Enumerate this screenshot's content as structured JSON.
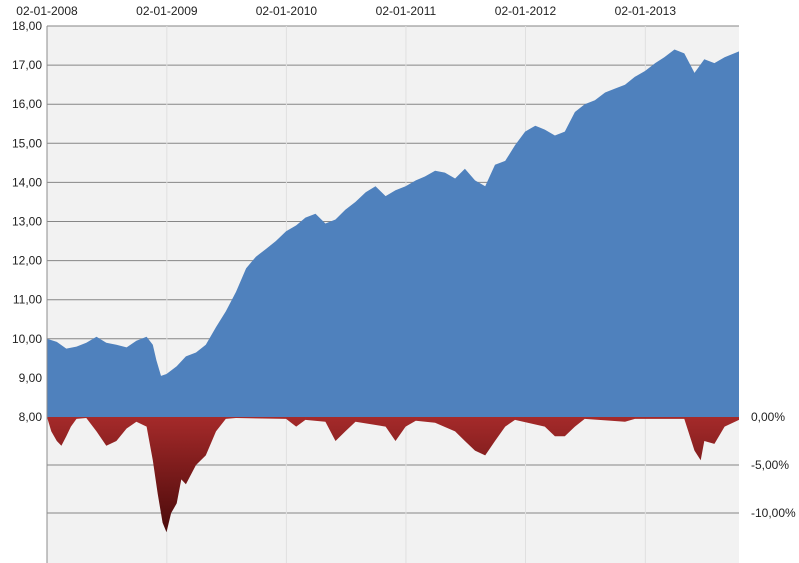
{
  "chart_data": {
    "type": "area",
    "title": "",
    "xlabel": "",
    "ylabel": "",
    "x_tick_labels": [
      "02-01-2008",
      "02-01-2009",
      "02-01-2010",
      "02-01-2011",
      "02-01-2012",
      "02-01-2013"
    ],
    "x_range": [
      "2008-01-02",
      "2013-10-15"
    ],
    "grid": true,
    "legend": "none",
    "series": [
      {
        "axis": "left",
        "color": "#4f81bd",
        "y_range": [
          8,
          18
        ],
        "y_tick_labels": [
          "8,00",
          "9,00",
          "10,00",
          "11,00",
          "12,00",
          "13,00",
          "14,00",
          "15,00",
          "16,00",
          "17,00",
          "18,00"
        ],
        "points": [
          [
            "2008-01-02",
            10.0
          ],
          [
            "2008-02-01",
            9.92
          ],
          [
            "2008-03-01",
            9.75
          ],
          [
            "2008-04-01",
            9.8
          ],
          [
            "2008-05-01",
            9.9
          ],
          [
            "2008-06-01",
            10.05
          ],
          [
            "2008-07-01",
            9.9
          ],
          [
            "2008-08-01",
            9.85
          ],
          [
            "2008-09-01",
            9.78
          ],
          [
            "2008-10-01",
            9.95
          ],
          [
            "2008-11-01",
            10.05
          ],
          [
            "2008-11-20",
            9.85
          ],
          [
            "2008-12-01",
            9.45
          ],
          [
            "2008-12-15",
            9.05
          ],
          [
            "2009-01-01",
            9.1
          ],
          [
            "2009-02-01",
            9.3
          ],
          [
            "2009-03-01",
            9.55
          ],
          [
            "2009-04-01",
            9.65
          ],
          [
            "2009-05-01",
            9.85
          ],
          [
            "2009-06-01",
            10.3
          ],
          [
            "2009-07-01",
            10.7
          ],
          [
            "2009-08-01",
            11.2
          ],
          [
            "2009-09-01",
            11.8
          ],
          [
            "2009-10-01",
            12.1
          ],
          [
            "2009-11-01",
            12.3
          ],
          [
            "2009-12-01",
            12.5
          ],
          [
            "2010-01-01",
            12.75
          ],
          [
            "2010-02-01",
            12.9
          ],
          [
            "2010-03-01",
            13.1
          ],
          [
            "2010-04-01",
            13.2
          ],
          [
            "2010-05-01",
            12.95
          ],
          [
            "2010-06-01",
            13.05
          ],
          [
            "2010-07-01",
            13.3
          ],
          [
            "2010-08-01",
            13.5
          ],
          [
            "2010-09-01",
            13.75
          ],
          [
            "2010-10-01",
            13.9
          ],
          [
            "2010-11-01",
            13.65
          ],
          [
            "2010-12-01",
            13.8
          ],
          [
            "2011-01-01",
            13.9
          ],
          [
            "2011-02-01",
            14.05
          ],
          [
            "2011-03-01",
            14.15
          ],
          [
            "2011-04-01",
            14.3
          ],
          [
            "2011-05-01",
            14.25
          ],
          [
            "2011-06-01",
            14.1
          ],
          [
            "2011-07-01",
            14.35
          ],
          [
            "2011-08-01",
            14.05
          ],
          [
            "2011-09-01",
            13.9
          ],
          [
            "2011-10-01",
            14.45
          ],
          [
            "2011-11-01",
            14.55
          ],
          [
            "2011-12-01",
            14.95
          ],
          [
            "2012-01-01",
            15.3
          ],
          [
            "2012-02-01",
            15.45
          ],
          [
            "2012-03-01",
            15.35
          ],
          [
            "2012-04-01",
            15.2
          ],
          [
            "2012-05-01",
            15.3
          ],
          [
            "2012-06-01",
            15.8
          ],
          [
            "2012-07-01",
            16.0
          ],
          [
            "2012-08-01",
            16.1
          ],
          [
            "2012-09-01",
            16.3
          ],
          [
            "2012-10-01",
            16.4
          ],
          [
            "2012-11-01",
            16.5
          ],
          [
            "2012-12-01",
            16.7
          ],
          [
            "2013-01-01",
            16.85
          ],
          [
            "2013-02-01",
            17.05
          ],
          [
            "2013-03-01",
            17.2
          ],
          [
            "2013-04-01",
            17.4
          ],
          [
            "2013-05-01",
            17.3
          ],
          [
            "2013-06-01",
            16.8
          ],
          [
            "2013-07-01",
            17.15
          ],
          [
            "2013-08-01",
            17.05
          ],
          [
            "2013-09-01",
            17.2
          ],
          [
            "2013-10-15",
            17.35
          ]
        ]
      },
      {
        "axis": "right",
        "color": "#8b1a1a",
        "y_range": [
          -15.2,
          0
        ],
        "y_tick_labels": [
          "0,00%",
          "-5,00%",
          "-10,00%"
        ],
        "points": [
          [
            "2008-01-02",
            0.0
          ],
          [
            "2008-01-15",
            -1.5
          ],
          [
            "2008-02-01",
            -2.5
          ],
          [
            "2008-02-15",
            -3.0
          ],
          [
            "2008-03-01",
            -2.0
          ],
          [
            "2008-03-15",
            -1.0
          ],
          [
            "2008-04-01",
            -0.2
          ],
          [
            "2008-05-01",
            -0.1
          ],
          [
            "2008-06-01",
            -1.5
          ],
          [
            "2008-07-01",
            -3.0
          ],
          [
            "2008-08-01",
            -2.5
          ],
          [
            "2008-09-01",
            -1.2
          ],
          [
            "2008-10-01",
            -0.5
          ],
          [
            "2008-11-01",
            -1.0
          ],
          [
            "2008-11-20",
            -4.5
          ],
          [
            "2008-12-05",
            -8.0
          ],
          [
            "2008-12-20",
            -11.0
          ],
          [
            "2009-01-01",
            -12.0
          ],
          [
            "2009-01-15",
            -10.0
          ],
          [
            "2009-02-01",
            -9.0
          ],
          [
            "2009-02-15",
            -6.5
          ],
          [
            "2009-03-01",
            -7.0
          ],
          [
            "2009-04-01",
            -5.0
          ],
          [
            "2009-05-01",
            -4.0
          ],
          [
            "2009-06-01",
            -1.5
          ],
          [
            "2009-07-01",
            -0.2
          ],
          [
            "2009-08-01",
            -0.1
          ],
          [
            "2010-01-01",
            -0.2
          ],
          [
            "2010-02-01",
            -1.0
          ],
          [
            "2010-03-01",
            -0.3
          ],
          [
            "2010-05-01",
            -0.5
          ],
          [
            "2010-06-01",
            -2.5
          ],
          [
            "2010-07-01",
            -1.5
          ],
          [
            "2010-08-01",
            -0.5
          ],
          [
            "2010-11-01",
            -1.0
          ],
          [
            "2010-12-01",
            -2.5
          ],
          [
            "2011-01-01",
            -1.0
          ],
          [
            "2011-02-01",
            -0.4
          ],
          [
            "2011-04-01",
            -0.6
          ],
          [
            "2011-06-01",
            -1.5
          ],
          [
            "2011-07-01",
            -2.5
          ],
          [
            "2011-08-01",
            -3.5
          ],
          [
            "2011-09-01",
            -4.0
          ],
          [
            "2011-10-01",
            -2.5
          ],
          [
            "2011-11-01",
            -1.0
          ],
          [
            "2011-12-01",
            -0.3
          ],
          [
            "2012-03-01",
            -1.0
          ],
          [
            "2012-04-01",
            -2.0
          ],
          [
            "2012-05-01",
            -2.0
          ],
          [
            "2012-06-01",
            -1.0
          ],
          [
            "2012-07-01",
            -0.2
          ],
          [
            "2012-11-01",
            -0.5
          ],
          [
            "2012-12-01",
            -0.2
          ],
          [
            "2013-05-01",
            -0.2
          ],
          [
            "2013-06-01",
            -3.5
          ],
          [
            "2013-06-20",
            -4.5
          ],
          [
            "2013-07-01",
            -2.5
          ],
          [
            "2013-08-01",
            -2.8
          ],
          [
            "2013-09-01",
            -1.0
          ],
          [
            "2013-10-15",
            -0.3
          ]
        ]
      }
    ]
  }
}
